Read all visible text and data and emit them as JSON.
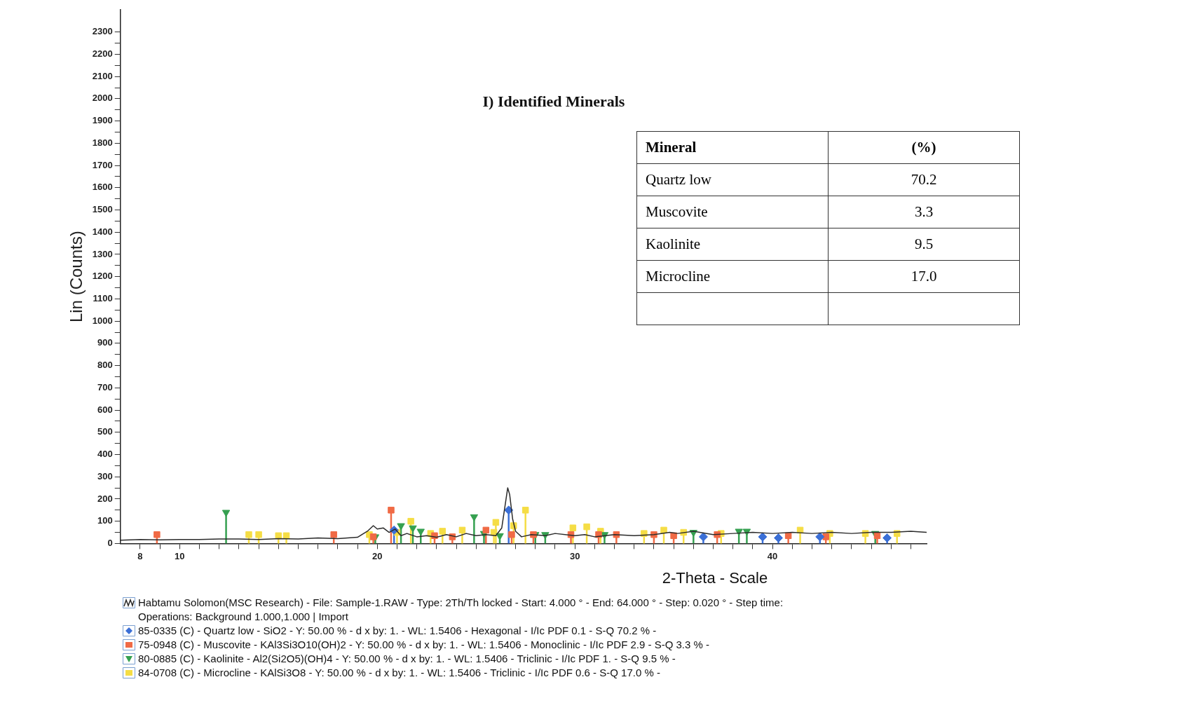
{
  "chart_data": {
    "type": "line",
    "subtitle": "I) Identified Minerals",
    "xlabel": "2-Theta - Scale",
    "ylabel": "Lin (Counts)",
    "xlim": [
      7,
      47.8
    ],
    "ylim": [
      0,
      2400
    ],
    "xticks": [
      {
        "value": 8,
        "label": "8"
      },
      {
        "value": 9,
        "label": null
      },
      10,
      {
        "value": 11,
        "label": null
      },
      {
        "value": 12,
        "label": null
      },
      {
        "value": 13,
        "label": null
      },
      {
        "value": 14,
        "label": null
      },
      {
        "value": 15,
        "label": null
      },
      {
        "value": 16,
        "label": null
      },
      {
        "value": 17,
        "label": null
      },
      {
        "value": 18,
        "label": null
      },
      {
        "value": 19,
        "label": null
      },
      20,
      {
        "value": 21,
        "label": null
      },
      {
        "value": 22,
        "label": null
      },
      {
        "value": 23,
        "label": null
      },
      {
        "value": 24,
        "label": null
      },
      {
        "value": 25,
        "label": null
      },
      {
        "value": 26,
        "label": null
      },
      {
        "value": 27,
        "label": null
      },
      {
        "value": 28,
        "label": null
      },
      {
        "value": 29,
        "label": null
      },
      30,
      {
        "value": 31,
        "label": null
      },
      {
        "value": 32,
        "label": null
      },
      {
        "value": 33,
        "label": null
      },
      {
        "value": 34,
        "label": null
      },
      {
        "value": 35,
        "label": null
      },
      {
        "value": 36,
        "label": null
      },
      {
        "value": 37,
        "label": null
      },
      {
        "value": 38,
        "label": null
      },
      {
        "value": 39,
        "label": null
      },
      40,
      {
        "value": 41,
        "label": null
      },
      {
        "value": 42,
        "label": null
      },
      {
        "value": 43,
        "label": null
      },
      {
        "value": 44,
        "label": null
      },
      {
        "value": 45,
        "label": null
      },
      {
        "value": 46,
        "label": null
      },
      {
        "value": 47,
        "label": null
      }
    ],
    "yticks": [
      0,
      {
        "value": 50,
        "label": null
      },
      100,
      {
        "value": 150,
        "label": null
      },
      200,
      {
        "value": 250,
        "label": null
      },
      300,
      {
        "value": 350,
        "label": null
      },
      400,
      {
        "value": 450,
        "label": null
      },
      500,
      {
        "value": 550,
        "label": null
      },
      600,
      {
        "value": 650,
        "label": null
      },
      700,
      {
        "value": 750,
        "label": null
      },
      800,
      {
        "value": 850,
        "label": null
      },
      900,
      {
        "value": 950,
        "label": null
      },
      1000,
      {
        "value": 1050,
        "label": null
      },
      1100,
      {
        "value": 1150,
        "label": null
      },
      1200,
      {
        "value": 1250,
        "label": null
      },
      1300,
      {
        "value": 1350,
        "label": null
      },
      1400,
      {
        "value": 1450,
        "label": null
      },
      1500,
      {
        "value": 1550,
        "label": null
      },
      1600,
      {
        "value": 1650,
        "label": null
      },
      1700,
      {
        "value": 1750,
        "label": null
      },
      1800,
      {
        "value": 1850,
        "label": null
      },
      1900,
      {
        "value": 1950,
        "label": null
      },
      2000,
      {
        "value": 2050,
        "label": null
      },
      2100,
      {
        "value": 2150,
        "label": null
      },
      2200,
      {
        "value": 2250,
        "label": null
      },
      2300
    ],
    "grid": false,
    "legend": "bottom left",
    "series": [
      {
        "name": "Habtamu Solomon(MSC Research) - File: Sample-1.RAW - Type: 2Th/Th locked - Start: 4.000 ° - End: 64.000 ° - Step: 0.020 ° - Step time:\nOperations: Background 1.000,1.000 | Import",
        "color": "#2b2b2b",
        "marker": "none",
        "x": [
          7,
          8,
          9,
          10,
          11,
          12,
          13,
          14,
          15,
          16,
          17,
          18,
          19,
          19.5,
          19.8,
          20,
          20.3,
          20.6,
          20.9,
          21.2,
          21.5,
          22,
          22.5,
          23,
          23.5,
          24,
          24.5,
          25,
          25.5,
          26,
          26.3,
          26.5,
          26.6,
          26.7,
          26.85,
          27,
          27.3,
          27.8,
          28.5,
          29,
          30,
          30.5,
          31,
          32,
          33,
          34,
          34.8,
          35.2,
          36,
          37,
          38,
          39,
          40,
          41,
          42,
          43,
          44,
          45,
          46,
          47,
          47.8
        ],
        "values": [
          15,
          18,
          16,
          18,
          18,
          20,
          20,
          18,
          22,
          20,
          25,
          22,
          28,
          55,
          80,
          65,
          70,
          50,
          65,
          35,
          45,
          30,
          35,
          28,
          40,
          30,
          45,
          35,
          40,
          35,
          70,
          190,
          250,
          220,
          110,
          55,
          30,
          40,
          35,
          45,
          35,
          40,
          30,
          40,
          35,
          40,
          50,
          45,
          55,
          40,
          45,
          50,
          45,
          50,
          45,
          50,
          45,
          50,
          50,
          55,
          50
        ]
      },
      {
        "name": "85-0335 (C) - Quartz low - SiO2 - Y: 50.00 % - d x by: 1. - WL: 1.5406 - Hexagonal - I/Ic PDF 0.1 - S-Q 70.2 % -",
        "type": "lollipop",
        "color": "#3b6fd6",
        "marker": "diamond",
        "x": [
          20.85,
          26.65,
          36.5,
          39.5,
          40.3,
          42.4,
          45.8
        ],
        "values": [
          60,
          150,
          30,
          30,
          25,
          30,
          25
        ]
      },
      {
        "name": "75-0948 (C) - Muscovite - KAl3Si3O10(OH)2 - Y: 50.00 % - d x by: 1. - WL: 1.5406 - Monoclinic - I/Ic PDF 2.9 - S-Q 3.3 % -",
        "type": "lollipop",
        "color": "#f06a45",
        "marker": "square",
        "x": [
          8.85,
          17.8,
          19.8,
          20.7,
          22.9,
          23.8,
          25.5,
          26.8,
          27.9,
          29.8,
          31.2,
          32.1,
          34,
          35,
          37.2,
          40.8,
          42.7,
          45.3
        ],
        "values": [
          40,
          40,
          30,
          150,
          35,
          30,
          60,
          40,
          40,
          40,
          40,
          40,
          40,
          35,
          40,
          35,
          30,
          35
        ]
      },
      {
        "name": "80-0885 (C) - Kaolinite - Al2(Si2O5)(OH)4 - Y: 50.00 % - d x by: 1. - WL: 1.5406 - Triclinic - I/Ic PDF 1. - S-Q 9.5 % -",
        "type": "lollipop",
        "color": "#35a050",
        "marker": "triangle",
        "x": [
          12.35,
          19.9,
          21.2,
          21.8,
          22.2,
          24.9,
          25.4,
          26.2,
          28,
          28.5,
          31.5,
          36,
          38.3,
          38.7,
          45.2
        ],
        "values": [
          140,
          30,
          80,
          70,
          55,
          120,
          45,
          35,
          40,
          40,
          40,
          50,
          55,
          55,
          45
        ]
      },
      {
        "name": "84-0708 (C) - Microcline - KAlSi3O8 - Y: 50.00 % - d x by: 1. - WL: 1.5406 - Triclinic - I/Ic PDF 0.6 - S-Q 17.0 % -",
        "type": "lollipop",
        "color": "#f5dd45",
        "marker": "square",
        "x": [
          13.5,
          14,
          15,
          15.4,
          19.6,
          21,
          21.7,
          22.7,
          23.3,
          24.3,
          25.9,
          26,
          26.9,
          27.5,
          29.9,
          30.6,
          31.3,
          33.5,
          34.5,
          35.5,
          37.4,
          41.4,
          42.9,
          44.7,
          46.3
        ],
        "values": [
          40,
          40,
          35,
          35,
          40,
          50,
          100,
          45,
          55,
          60,
          50,
          95,
          80,
          150,
          70,
          75,
          55,
          45,
          60,
          50,
          45,
          60,
          45,
          45,
          45
        ]
      }
    ],
    "annotations": [
      "Mineral",
      "(%)",
      "Quartz low",
      "70.2",
      "Muscovite",
      "3.3",
      "Kaolinite",
      "9.5",
      "Microcline",
      "17.0"
    ]
  }
}
